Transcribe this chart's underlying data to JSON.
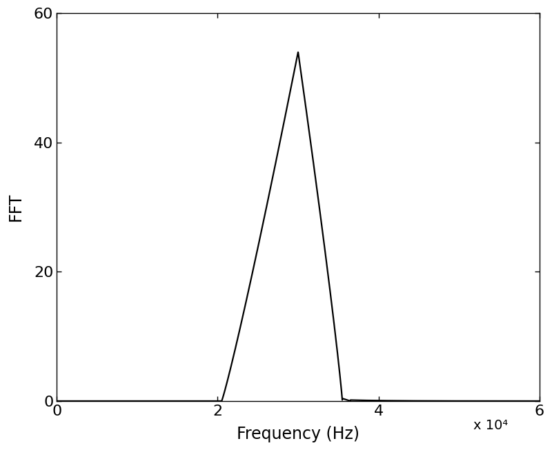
{
  "title": "",
  "xlabel": "Frequency (Hz)",
  "ylabel": "FFT",
  "xlim": [
    0,
    60000
  ],
  "ylim": [
    0,
    60
  ],
  "xticks": [
    0,
    20000,
    40000,
    60000
  ],
  "xticklabels": [
    "0",
    "2",
    "4",
    "6"
  ],
  "yticks": [
    0,
    20,
    40,
    60
  ],
  "yticklabels": [
    "0",
    "20",
    "40",
    "60"
  ],
  "x10_label": "x 10⁴",
  "line_color": "#000000",
  "line_width": 1.6,
  "background_color": "#ffffff",
  "rise_start": 20500,
  "peak_x": 30000,
  "peak_y": 54.0,
  "fall_end": 35500,
  "tail_end": 60000
}
